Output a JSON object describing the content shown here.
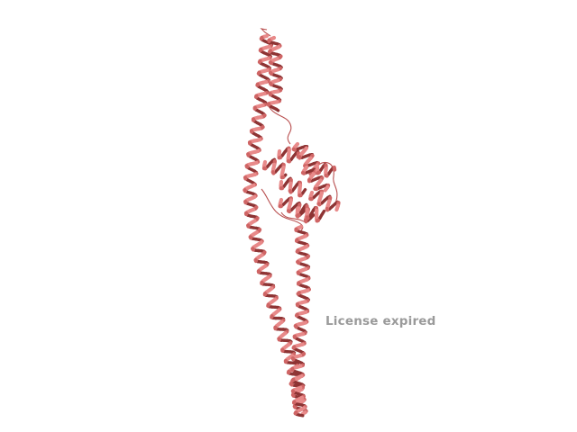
{
  "viewer": {
    "background": "#ffffff",
    "colors": {
      "helix_light": "#e88a8a",
      "helix_mid": "#cf6565",
      "helix_dark": "#8e3434",
      "loop": "#b95050"
    }
  },
  "watermark": {
    "text": "License expired",
    "color": "#9a9a9a"
  }
}
